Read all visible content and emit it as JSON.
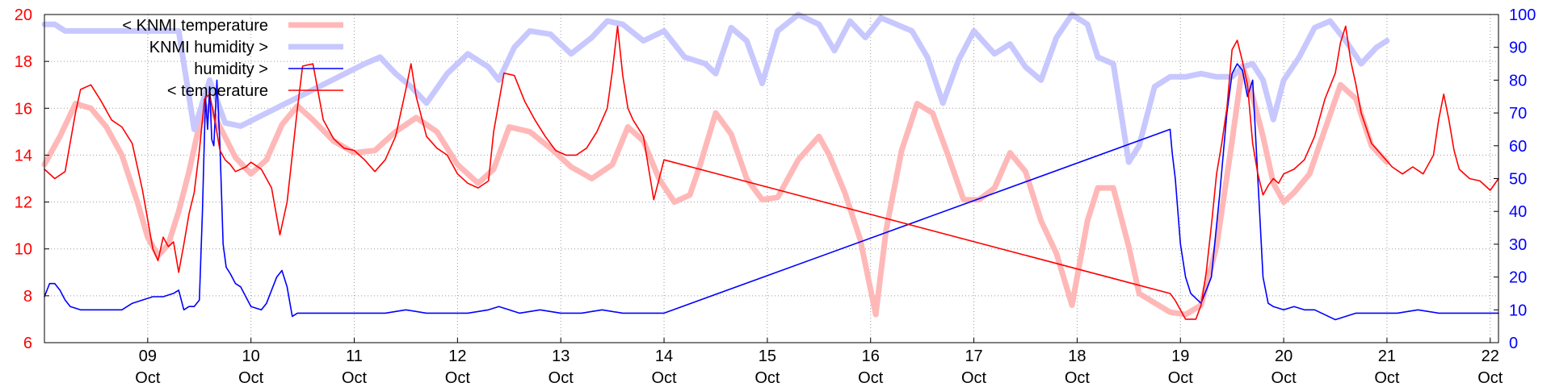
{
  "chart_data": {
    "type": "line",
    "title": "",
    "xlabel": "",
    "ylabel_left": "",
    "ylabel_right": "",
    "x_unit": "day of October",
    "xlim": [
      8.0,
      22.08
    ],
    "ylim_left": [
      6,
      20
    ],
    "ylim_right": [
      0,
      100
    ],
    "left_ticks": [
      6,
      8,
      10,
      12,
      14,
      16,
      18,
      20
    ],
    "right_ticks": [
      0,
      10,
      20,
      30,
      40,
      50,
      60,
      70,
      80,
      90,
      100
    ],
    "x_ticks": [
      {
        "value": 9,
        "day": "09",
        "month": "Oct"
      },
      {
        "value": 10,
        "day": "10",
        "month": "Oct"
      },
      {
        "value": 11,
        "day": "11",
        "month": "Oct"
      },
      {
        "value": 12,
        "day": "12",
        "month": "Oct"
      },
      {
        "value": 13,
        "day": "13",
        "month": "Oct"
      },
      {
        "value": 14,
        "day": "14",
        "month": "Oct"
      },
      {
        "value": 15,
        "day": "15",
        "month": "Oct"
      },
      {
        "value": 16,
        "day": "16",
        "month": "Oct"
      },
      {
        "value": 17,
        "day": "17",
        "month": "Oct"
      },
      {
        "value": 18,
        "day": "18",
        "month": "Oct"
      },
      {
        "value": 19,
        "day": "19",
        "month": "Oct"
      },
      {
        "value": 20,
        "day": "20",
        "month": "Oct"
      },
      {
        "value": 21,
        "day": "21",
        "month": "Oct"
      },
      {
        "value": 22,
        "day": "22",
        "month": "Oct"
      }
    ],
    "grid": true,
    "legend_position": "top-left",
    "colors": {
      "left_axis": "#ff0000",
      "right_axis": "#0000ff",
      "grid": "#9a9a9a"
    },
    "series": [
      {
        "name": "< KNMI temperature",
        "axis": "left",
        "color": "#ffb8b8",
        "thick": true,
        "x": [
          8.0,
          8.15,
          8.3,
          8.45,
          8.6,
          8.75,
          8.9,
          9.0,
          9.1,
          9.2,
          9.3,
          9.4,
          9.5,
          9.6,
          9.7,
          9.85,
          10.0,
          10.15,
          10.3,
          10.45,
          10.6,
          10.8,
          11.0,
          11.2,
          11.4,
          11.6,
          11.8,
          12.0,
          12.2,
          12.35,
          12.5,
          12.7,
          12.9,
          13.1,
          13.3,
          13.5,
          13.65,
          13.8,
          13.95,
          14.1,
          14.25,
          14.35,
          14.5,
          14.65,
          14.8,
          14.95,
          15.1,
          15.3,
          15.5,
          15.6,
          15.75,
          15.9,
          16.05,
          16.15,
          16.3,
          16.45,
          16.6,
          16.75,
          16.9,
          17.05,
          17.2,
          17.35,
          17.5,
          17.65,
          17.8,
          17.95,
          18.1,
          18.2,
          18.35,
          18.5,
          18.6,
          18.75,
          18.9,
          19.05,
          19.2,
          19.35,
          19.5,
          19.6,
          19.7,
          19.8,
          19.9,
          20.0,
          20.1,
          20.25,
          20.4,
          20.55,
          20.7,
          20.85,
          21.0
        ],
        "y": [
          13.6,
          14.8,
          16.2,
          16.0,
          15.2,
          14.0,
          12.0,
          10.5,
          9.7,
          10.2,
          11.6,
          13.3,
          15.3,
          16.1,
          15.2,
          13.9,
          13.2,
          13.8,
          15.3,
          16.1,
          15.5,
          14.6,
          14.1,
          14.2,
          15.0,
          15.6,
          15.0,
          13.6,
          12.8,
          13.4,
          15.2,
          15.0,
          14.3,
          13.5,
          13.0,
          13.6,
          15.2,
          14.6,
          13.0,
          12.0,
          12.3,
          13.6,
          15.8,
          14.9,
          13.0,
          12.1,
          12.2,
          13.8,
          14.8,
          14.0,
          12.4,
          10.4,
          7.2,
          10.8,
          14.2,
          16.2,
          15.8,
          14.0,
          12.1,
          12.1,
          12.6,
          14.1,
          13.3,
          11.2,
          9.8,
          7.6,
          11.2,
          12.6,
          12.6,
          10.1,
          8.1,
          7.7,
          7.3,
          7.2,
          7.6,
          10.1,
          14.6,
          17.8,
          16.5,
          14.8,
          12.8,
          12.0,
          12.4,
          13.2,
          15.1,
          17.0,
          16.4,
          14.4,
          13.7
        ]
      },
      {
        "name": "KNMI humidity >",
        "axis": "right",
        "color": "#c8c8ff",
        "thick": true,
        "x": [
          8.0,
          8.1,
          8.2,
          9.3,
          9.45,
          9.6,
          9.75,
          9.9,
          11.1,
          11.25,
          11.4,
          11.55,
          11.7,
          11.9,
          12.1,
          12.3,
          12.4,
          12.55,
          12.7,
          12.9,
          13.1,
          13.3,
          13.45,
          13.6,
          13.8,
          14.0,
          14.2,
          14.4,
          14.5,
          14.65,
          14.8,
          14.95,
          15.1,
          15.3,
          15.5,
          15.65,
          15.8,
          15.95,
          16.1,
          16.25,
          16.4,
          16.55,
          16.7,
          16.85,
          17.0,
          17.2,
          17.35,
          17.5,
          17.65,
          17.8,
          17.95,
          18.1,
          18.2,
          18.35,
          18.5,
          18.6,
          18.75,
          18.9,
          19.05,
          19.2,
          19.35,
          19.5,
          19.6,
          19.7,
          19.8,
          19.9,
          20.0,
          20.15,
          20.3,
          20.45,
          20.6,
          20.75,
          20.9,
          21.0
        ],
        "y": [
          97,
          97,
          95,
          95,
          65,
          80,
          67,
          66,
          85,
          87,
          82,
          78,
          73,
          82,
          88,
          84,
          80,
          90,
          95,
          94,
          88,
          93,
          98,
          97,
          92,
          95,
          87,
          85,
          82,
          96,
          92,
          79,
          95,
          100,
          97,
          89,
          98,
          93,
          99,
          97,
          95,
          87,
          73,
          86,
          95,
          88,
          91,
          84,
          80,
          93,
          100,
          97,
          87,
          85,
          55,
          60,
          78,
          81,
          81,
          82,
          81,
          81,
          84,
          85,
          80,
          68,
          80,
          87,
          96,
          98,
          92,
          85,
          90,
          92
        ]
      },
      {
        "name": "humidity >",
        "axis": "right",
        "color": "#0000ff",
        "thick": false,
        "x": [
          8.0,
          8.05,
          8.1,
          8.15,
          8.2,
          8.25,
          8.35,
          8.45,
          8.55,
          8.65,
          8.75,
          8.85,
          8.95,
          9.05,
          9.15,
          9.25,
          9.3,
          9.35,
          9.4,
          9.45,
          9.5,
          9.53,
          9.56,
          9.58,
          9.6,
          9.62,
          9.64,
          9.67,
          9.7,
          9.73,
          9.76,
          9.8,
          9.85,
          9.9,
          10.0,
          10.1,
          10.15,
          10.2,
          10.25,
          10.3,
          10.35,
          10.4,
          10.45,
          10.55,
          10.7,
          10.9,
          11.1,
          11.3,
          11.5,
          11.7,
          11.9,
          12.1,
          12.3,
          12.4,
          12.5,
          12.6,
          12.8,
          13.0,
          13.2,
          13.4,
          13.6,
          13.8,
          14.0,
          18.9,
          18.92,
          18.95,
          19.0,
          19.05,
          19.1,
          19.2,
          19.3,
          19.38,
          19.45,
          19.5,
          19.55,
          19.6,
          19.65,
          19.7,
          19.75,
          19.8,
          19.85,
          19.9,
          20.0,
          20.1,
          20.2,
          20.3,
          20.5,
          20.7,
          20.9,
          21.1,
          21.3,
          21.5,
          21.7,
          21.9,
          22.08
        ],
        "y": [
          14,
          18,
          18,
          16,
          13,
          11,
          10,
          10,
          10,
          10,
          10,
          12,
          13,
          14,
          14,
          15,
          16,
          10,
          11,
          11,
          13,
          40,
          75,
          65,
          78,
          62,
          60,
          80,
          60,
          30,
          23,
          21,
          18,
          17,
          11,
          10,
          12,
          16,
          20,
          22,
          17,
          8,
          9,
          9,
          9,
          9,
          9,
          9,
          10,
          9,
          9,
          9,
          10,
          11,
          10,
          9,
          10,
          9,
          9,
          10,
          9,
          9,
          9,
          65,
          58,
          50,
          30,
          20,
          15,
          12,
          20,
          45,
          70,
          82,
          85,
          83,
          75,
          80,
          50,
          20,
          12,
          11,
          10,
          11,
          10,
          10,
          7,
          9,
          9,
          9,
          10,
          9,
          9,
          9,
          9
        ]
      },
      {
        "name": "< temperature",
        "axis": "left",
        "color": "#ff0000",
        "thick": false,
        "x": [
          8.0,
          8.1,
          8.2,
          8.3,
          8.35,
          8.45,
          8.55,
          8.65,
          8.75,
          8.85,
          8.95,
          9.05,
          9.1,
          9.15,
          9.2,
          9.25,
          9.3,
          9.35,
          9.4,
          9.45,
          9.5,
          9.55,
          9.6,
          9.65,
          9.7,
          9.75,
          9.8,
          9.85,
          9.95,
          10.0,
          10.1,
          10.2,
          10.28,
          10.35,
          10.45,
          10.5,
          10.6,
          10.7,
          10.8,
          10.9,
          11.0,
          11.1,
          11.2,
          11.3,
          11.4,
          11.5,
          11.55,
          11.6,
          11.7,
          11.8,
          11.9,
          12.0,
          12.1,
          12.2,
          12.3,
          12.35,
          12.45,
          12.55,
          12.65,
          12.75,
          12.85,
          12.95,
          13.05,
          13.15,
          13.25,
          13.35,
          13.45,
          13.5,
          13.55,
          13.6,
          13.65,
          13.7,
          13.8,
          13.9,
          14.0,
          18.9,
          18.95,
          19.05,
          19.15,
          19.2,
          19.25,
          19.3,
          19.35,
          19.4,
          19.45,
          19.5,
          19.55,
          19.6,
          19.65,
          19.7,
          19.75,
          19.8,
          19.85,
          19.9,
          19.95,
          20.0,
          20.1,
          20.2,
          20.3,
          20.4,
          20.5,
          20.55,
          20.6,
          20.65,
          20.7,
          20.75,
          20.85,
          20.95,
          21.05,
          21.15,
          21.25,
          21.35,
          21.45,
          21.5,
          21.55,
          21.6,
          21.65,
          21.7,
          21.8,
          21.9,
          22.0,
          22.08
        ],
        "y": [
          13.4,
          13.0,
          13.3,
          15.8,
          16.8,
          17.0,
          16.3,
          15.5,
          15.2,
          14.5,
          12.5,
          10.0,
          9.5,
          10.5,
          10.1,
          10.3,
          9.0,
          10.2,
          11.5,
          12.4,
          14.2,
          16.4,
          16.6,
          15.5,
          14.2,
          13.8,
          13.6,
          13.3,
          13.5,
          13.7,
          13.4,
          12.6,
          10.6,
          12.0,
          16.0,
          17.8,
          17.9,
          15.5,
          14.7,
          14.3,
          14.2,
          13.8,
          13.3,
          13.8,
          14.8,
          16.8,
          17.9,
          16.5,
          14.8,
          14.3,
          14.0,
          13.2,
          12.8,
          12.6,
          12.9,
          15.0,
          17.5,
          17.4,
          16.3,
          15.5,
          14.8,
          14.2,
          14.0,
          14.0,
          14.3,
          15.0,
          16.0,
          17.6,
          19.5,
          17.4,
          16.0,
          15.5,
          14.8,
          12.1,
          13.8,
          8.1,
          7.8,
          7.0,
          7.0,
          7.6,
          9.0,
          11.0,
          13.2,
          14.5,
          16.0,
          18.5,
          18.9,
          18.0,
          17.0,
          14.5,
          13.2,
          12.3,
          12.7,
          13.0,
          12.8,
          13.2,
          13.4,
          13.8,
          14.8,
          16.4,
          17.5,
          18.8,
          19.5,
          18.0,
          17.0,
          15.8,
          14.5,
          14.0,
          13.5,
          13.2,
          13.5,
          13.2,
          14.0,
          15.5,
          16.6,
          15.5,
          14.2,
          13.4,
          13.0,
          12.9,
          12.5,
          13.0
        ]
      }
    ]
  }
}
